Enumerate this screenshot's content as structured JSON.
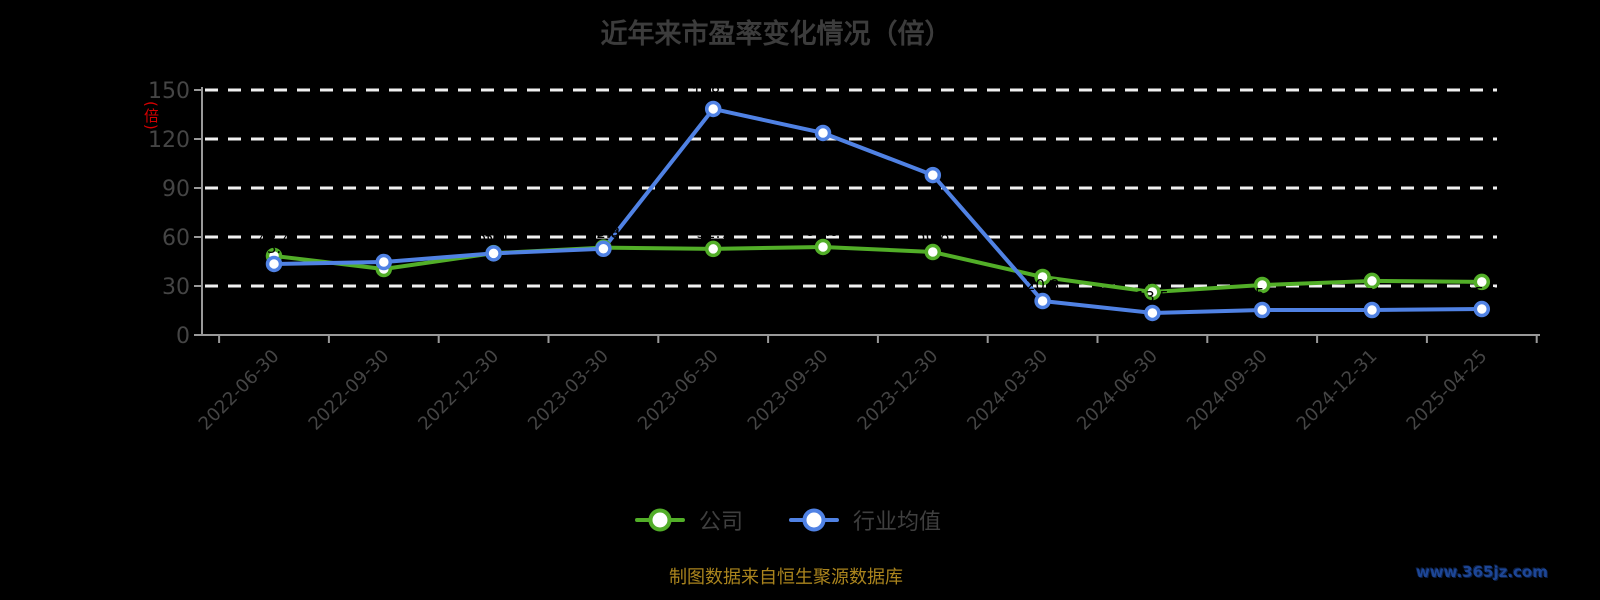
{
  "title": "近年来市盈率变化情况（倍）",
  "y_axis_unit": "(倍)",
  "legend": {
    "items": [
      {
        "label": "公司",
        "color": "#52ae28"
      },
      {
        "label": "行业均值",
        "color": "#5082e4"
      }
    ]
  },
  "footer": {
    "source_note": "制图数据来自恒生聚源数据库",
    "watermark": "www.365jz.com"
  },
  "colors": {
    "background": "#000000",
    "title_text": "#3c3c3c",
    "axis_line": "#999999",
    "axis_label": "#454545",
    "gridline": "#f0f0f0",
    "series_company": "#52ae28",
    "series_industry": "#5082e4",
    "point_fill": "#ffffff",
    "value_label": "#000000",
    "unit_label_red": "#d40000",
    "source_note_gold": "#aa841d",
    "watermark_blue": "#1d4696"
  },
  "chart_data": {
    "type": "line",
    "title": "近年来市盈率变化情况（倍）",
    "ylabel": "(倍)",
    "xlabel": "",
    "ylim": [
      0,
      150
    ],
    "yticks": [
      0,
      30,
      60,
      90,
      120,
      150
    ],
    "grid": "horizontal-dashed-white",
    "legend_position": "bottom",
    "categories": [
      "2022-06-30",
      "2022-09-30",
      "2022-12-30",
      "2023-03-30",
      "2023-06-30",
      "2023-09-30",
      "2023-12-30",
      "2024-03-30",
      "2024-06-30",
      "2024-09-30",
      "2024-12-31",
      "2025-04-25"
    ],
    "series": [
      {
        "name": "公司",
        "color": "#52ae28",
        "values": [
          48.4,
          40.4,
          50.1,
          53.5,
          52.7,
          53.9,
          50.8,
          35.5,
          26.3,
          30.6,
          33.1,
          32.5
        ]
      },
      {
        "name": "行业均值",
        "color": "#5082e4",
        "values": [
          43.5,
          44.7,
          50.0,
          52.8,
          138.4,
          123.7,
          97.9,
          20.8,
          13.5,
          15.3,
          15.3,
          15.9
        ]
      }
    ]
  }
}
